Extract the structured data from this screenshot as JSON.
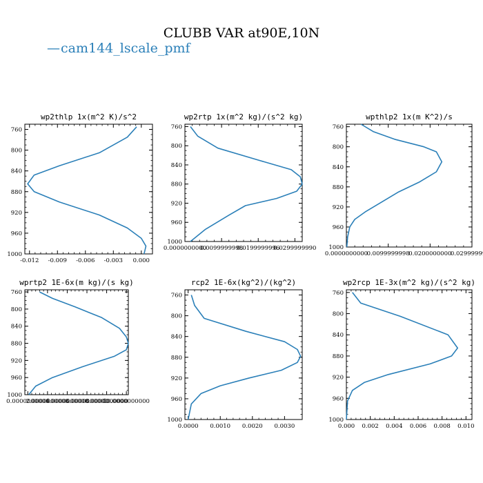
{
  "figure": {
    "title": "CLUBB VAR at90E,10N",
    "legend": {
      "line_symbol": "—",
      "label": "cam144_lscale_pmf",
      "color": "#2a7fb8"
    }
  },
  "chart_data": [
    {
      "type": "line",
      "title": "wp2thlp  1x(m^2 K)/s^2",
      "xlim": [
        -0.0125,
        0.0012
      ],
      "ylim": [
        1000,
        750
      ],
      "xticks": [
        -0.012,
        -0.009,
        -0.006,
        -0.003,
        0.0
      ],
      "xtick_labels": [
        "-0.012",
        "-0.009",
        "-0.006",
        "-0.003",
        "0.000"
      ],
      "yticks": [
        760,
        800,
        840,
        880,
        920,
        960,
        1000
      ],
      "series": [
        {
          "x": [
            -0.0005,
            -0.0015,
            -0.0045,
            -0.0088,
            -0.0115,
            -0.0122,
            -0.0115,
            -0.0088,
            -0.0045,
            -0.0015,
            0.0,
            0.0005,
            0.0003
          ],
          "y": [
            755,
            775,
            805,
            830,
            848,
            865,
            880,
            900,
            925,
            950,
            970,
            985,
            1000
          ]
        }
      ]
    },
    {
      "type": "line",
      "title": "wp2rtp  1x(m^2 kg)/(s^2 kg)",
      "xlim": [
        0.0,
        0.032
      ],
      "ylim": [
        1000,
        755
      ],
      "xticks": [
        0.0,
        0.01,
        0.02,
        0.03
      ],
      "xtick_labels": [
        "0.0000000000",
        "0.0099999998",
        "0.0199999996",
        "0.0299999990"
      ],
      "yticks": [
        760,
        800,
        840,
        880,
        920,
        960,
        1000
      ],
      "series": [
        {
          "x": [
            0.0015,
            0.0035,
            0.009,
            0.02,
            0.029,
            0.0315,
            0.032,
            0.0305,
            0.025,
            0.0165,
            0.012,
            0.0055,
            0.0015
          ],
          "y": [
            760,
            780,
            805,
            830,
            850,
            865,
            880,
            895,
            910,
            925,
            945,
            975,
            1000
          ]
        }
      ]
    },
    {
      "type": "line",
      "title": "wpthlp2  1x(m K^2)/s",
      "xlim": [
        0.0,
        0.03
      ],
      "ylim": [
        1000,
        755
      ],
      "xticks": [
        0.0,
        0.01,
        0.02,
        0.03
      ],
      "xtick_labels": [
        "0.0000000000",
        "0.0099999998",
        "0.0200000000",
        "0.0299999990"
      ],
      "yticks": [
        760,
        800,
        840,
        880,
        920,
        960,
        1000
      ],
      "series": [
        {
          "x": [
            0.0035,
            0.0065,
            0.0115,
            0.0185,
            0.0215,
            0.0228,
            0.0215,
            0.0175,
            0.0125,
            0.0085,
            0.0045,
            0.002,
            0.0008,
            0.0003,
            0.0001
          ],
          "y": [
            755,
            770,
            785,
            800,
            810,
            830,
            850,
            870,
            890,
            910,
            930,
            945,
            960,
            980,
            1000
          ]
        }
      ]
    },
    {
      "type": "line",
      "title": "wprtp2  1E-6x(m kg)/(s kg)",
      "xlim": [
        -0.3,
        10.2
      ],
      "ylim": [
        1000,
        755
      ],
      "xticks": [
        0.0,
        2.0,
        4.0,
        6.0,
        8.0,
        10.0
      ],
      "xtick_labels": [
        "0.0000000000",
        "2.0000000000",
        "4.0000000000",
        "6.0000000000",
        "8.0000000000",
        "10.0000000000"
      ],
      "yticks": [
        760,
        800,
        840,
        880,
        920,
        960,
        1000
      ],
      "series": [
        {
          "x": [
            1.2,
            2.5,
            4.8,
            7.5,
            9.3,
            10.0,
            10.2,
            10.0,
            8.8,
            5.5,
            2.5,
            0.8,
            0.1
          ],
          "y": [
            760,
            775,
            795,
            820,
            845,
            865,
            880,
            895,
            910,
            935,
            960,
            980,
            1000
          ]
        }
      ]
    },
    {
      "type": "line",
      "title": "rcp2  1E-6x(kg^2)/(kg^2)",
      "xlim": [
        -0.0001,
        0.00355
      ],
      "ylim": [
        1000,
        750
      ],
      "xticks": [
        0.0,
        0.001,
        0.002,
        0.003
      ],
      "xtick_labels": [
        "0.0000",
        "0.0010",
        "0.0020",
        "0.0030"
      ],
      "yticks": [
        760,
        800,
        840,
        880,
        920,
        960,
        1000
      ],
      "series": [
        {
          "x": [
            0.0001,
            0.0002,
            0.0005,
            0.0018,
            0.003,
            0.0034,
            0.0035,
            0.0034,
            0.0029,
            0.0019,
            0.001,
            0.0004,
            0.0001,
            0.0
          ],
          "y": [
            760,
            780,
            805,
            830,
            850,
            865,
            878,
            890,
            905,
            920,
            935,
            950,
            970,
            1000
          ]
        }
      ]
    },
    {
      "type": "line",
      "title": "wp2rcp  1E-3x(m^2 kg)/(s^2 kg)",
      "xlim": [
        0.0,
        0.0105
      ],
      "ylim": [
        1000,
        755
      ],
      "xticks": [
        0.0,
        0.002,
        0.004,
        0.006,
        0.008,
        0.01
      ],
      "xtick_labels": [
        "0.000",
        "0.002",
        "0.004",
        "0.006",
        "0.008",
        "0.010"
      ],
      "yticks": [
        760,
        800,
        840,
        880,
        920,
        960,
        1000
      ],
      "series": [
        {
          "x": [
            0.0005,
            0.0012,
            0.0045,
            0.0085,
            0.0093,
            0.0088,
            0.007,
            0.0035,
            0.0015,
            0.0005,
            0.0001,
            0.0
          ],
          "y": [
            760,
            780,
            805,
            840,
            865,
            880,
            895,
            915,
            930,
            945,
            965,
            1000
          ]
        }
      ]
    }
  ]
}
